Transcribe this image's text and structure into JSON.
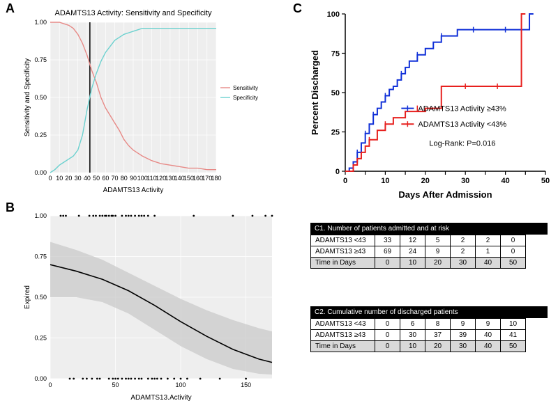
{
  "colors": {
    "sensitivity": "#e78a87",
    "specificity": "#6bd1cf",
    "km_ge43": "#1030d8",
    "km_lt43": "#e7201e",
    "ci_fill": "#c8c8c8",
    "ci_line": "#000000",
    "bg": "#ffffff",
    "panel_border": "#cccccc",
    "vline": "#000000"
  },
  "panelA": {
    "label": "A",
    "title": "ADAMTS13 Activity: Sensitivity and Specificity",
    "ylabel": "Sensitivity and Specificity",
    "xlabel": "ADAMTS13 Activity",
    "xlim": [
      0,
      180
    ],
    "xtick_step": 10,
    "ylim": [
      0,
      1
    ],
    "ytick_step": 0.25,
    "vline_x": 43,
    "series": {
      "sensitivity": [
        [
          0,
          1.0
        ],
        [
          5,
          1.0
        ],
        [
          10,
          1.0
        ],
        [
          15,
          0.99
        ],
        [
          20,
          0.98
        ],
        [
          25,
          0.96
        ],
        [
          30,
          0.92
        ],
        [
          35,
          0.86
        ],
        [
          40,
          0.78
        ],
        [
          45,
          0.68
        ],
        [
          50,
          0.6
        ],
        [
          55,
          0.5
        ],
        [
          60,
          0.43
        ],
        [
          65,
          0.38
        ],
        [
          70,
          0.33
        ],
        [
          75,
          0.28
        ],
        [
          80,
          0.22
        ],
        [
          85,
          0.18
        ],
        [
          90,
          0.15
        ],
        [
          95,
          0.13
        ],
        [
          100,
          0.11
        ],
        [
          110,
          0.08
        ],
        [
          120,
          0.06
        ],
        [
          130,
          0.05
        ],
        [
          140,
          0.04
        ],
        [
          150,
          0.03
        ],
        [
          160,
          0.03
        ],
        [
          170,
          0.02
        ],
        [
          180,
          0.02
        ]
      ],
      "specificity": [
        [
          0,
          0.0
        ],
        [
          5,
          0.02
        ],
        [
          10,
          0.05
        ],
        [
          15,
          0.07
        ],
        [
          20,
          0.09
        ],
        [
          25,
          0.11
        ],
        [
          30,
          0.15
        ],
        [
          35,
          0.25
        ],
        [
          40,
          0.42
        ],
        [
          45,
          0.56
        ],
        [
          50,
          0.66
        ],
        [
          55,
          0.74
        ],
        [
          60,
          0.8
        ],
        [
          65,
          0.84
        ],
        [
          70,
          0.88
        ],
        [
          75,
          0.9
        ],
        [
          80,
          0.92
        ],
        [
          85,
          0.93
        ],
        [
          90,
          0.94
        ],
        [
          95,
          0.95
        ],
        [
          100,
          0.96
        ],
        [
          110,
          0.96
        ],
        [
          120,
          0.96
        ],
        [
          130,
          0.96
        ],
        [
          140,
          0.96
        ],
        [
          150,
          0.96
        ],
        [
          160,
          0.96
        ],
        [
          170,
          0.96
        ],
        [
          180,
          0.96
        ]
      ]
    },
    "legend": {
      "sensitivity": "Sensitivity",
      "specificity": "Specificity"
    }
  },
  "panelB": {
    "label": "B",
    "ylabel": "Expired",
    "xlabel": "ADAMTS13.Activity",
    "xlim": [
      0,
      170
    ],
    "xtick_vals": [
      0,
      50,
      100,
      150
    ],
    "ylim": [
      0,
      1
    ],
    "ytick_step": 0.25,
    "curve": [
      [
        0,
        0.7
      ],
      [
        20,
        0.66
      ],
      [
        40,
        0.61
      ],
      [
        60,
        0.54
      ],
      [
        80,
        0.45
      ],
      [
        100,
        0.35
      ],
      [
        120,
        0.26
      ],
      [
        140,
        0.18
      ],
      [
        160,
        0.12
      ],
      [
        170,
        0.1
      ]
    ],
    "ci_upper": [
      [
        0,
        0.84
      ],
      [
        20,
        0.79
      ],
      [
        40,
        0.73
      ],
      [
        60,
        0.65
      ],
      [
        80,
        0.57
      ],
      [
        100,
        0.49
      ],
      [
        120,
        0.42
      ],
      [
        140,
        0.36
      ],
      [
        160,
        0.31
      ],
      [
        170,
        0.29
      ]
    ],
    "ci_lower": [
      [
        0,
        0.5
      ],
      [
        20,
        0.5
      ],
      [
        40,
        0.47
      ],
      [
        60,
        0.4
      ],
      [
        80,
        0.3
      ],
      [
        100,
        0.2
      ],
      [
        120,
        0.12
      ],
      [
        140,
        0.06
      ],
      [
        160,
        0.03
      ],
      [
        170,
        0.025
      ]
    ],
    "rug_top_x": [
      8,
      10,
      12,
      22,
      30,
      33,
      35,
      38,
      40,
      42,
      43,
      45,
      47,
      48,
      50,
      55,
      58,
      60,
      62,
      65,
      68,
      70,
      72,
      75,
      80,
      110,
      140,
      155,
      165,
      170
    ],
    "rug_bot_x": [
      15,
      18,
      25,
      28,
      32,
      36,
      38,
      45,
      48,
      50,
      52,
      55,
      58,
      60,
      62,
      65,
      68,
      70,
      75,
      78,
      80,
      82,
      85,
      90,
      95,
      100,
      105,
      115,
      130,
      150
    ]
  },
  "panelC": {
    "label": "C",
    "ylabel": "Percent Discharged",
    "xlabel": "Days After Admission",
    "xlim": [
      0,
      50
    ],
    "xtick_step": 5,
    "ylim": [
      0,
      100
    ],
    "ytick_step": 25,
    "legend": {
      "ge43": "ADAMTS13 Activity ≥43%",
      "lt43": "ADAMTS13 Activity <43%"
    },
    "logrank": "Log-Rank: P=0.016",
    "steps_ge43": [
      [
        0,
        0
      ],
      [
        1,
        2
      ],
      [
        2,
        6
      ],
      [
        3,
        12
      ],
      [
        4,
        18
      ],
      [
        5,
        24
      ],
      [
        6,
        30
      ],
      [
        7,
        36
      ],
      [
        8,
        40
      ],
      [
        9,
        44
      ],
      [
        10,
        48
      ],
      [
        11,
        52
      ],
      [
        12,
        54
      ],
      [
        13,
        58
      ],
      [
        14,
        62
      ],
      [
        15,
        66
      ],
      [
        16,
        70
      ],
      [
        18,
        74
      ],
      [
        20,
        78
      ],
      [
        22,
        82
      ],
      [
        24,
        86
      ],
      [
        28,
        90
      ],
      [
        46,
        90
      ],
      [
        46,
        100
      ],
      [
        47,
        100
      ]
    ],
    "steps_lt43": [
      [
        0,
        0
      ],
      [
        2,
        4
      ],
      [
        3,
        8
      ],
      [
        4,
        12
      ],
      [
        5,
        16
      ],
      [
        6,
        20
      ],
      [
        8,
        26
      ],
      [
        10,
        30
      ],
      [
        12,
        34
      ],
      [
        15,
        38
      ],
      [
        20,
        40
      ],
      [
        24,
        40
      ],
      [
        24,
        54
      ],
      [
        44,
        54
      ],
      [
        44,
        100
      ],
      [
        45,
        100
      ]
    ],
    "censor_ge43": [
      [
        3,
        12
      ],
      [
        5,
        24
      ],
      [
        7,
        36
      ],
      [
        10,
        48
      ],
      [
        14,
        62
      ],
      [
        18,
        74
      ],
      [
        24,
        86
      ],
      [
        32,
        90
      ],
      [
        40,
        90
      ]
    ],
    "censor_lt43": [
      [
        6,
        20
      ],
      [
        10,
        30
      ],
      [
        18,
        40
      ],
      [
        30,
        54
      ],
      [
        38,
        54
      ]
    ]
  },
  "tableC1": {
    "title": "C1. Number of patients admitted and at risk",
    "rows": [
      {
        "label": "ADAMTS13 <43",
        "vals": [
          33,
          12,
          5,
          2,
          2,
          0
        ]
      },
      {
        "label": "ADAMTS13 ≥43",
        "vals": [
          69,
          24,
          9,
          2,
          1,
          0
        ]
      }
    ],
    "time_label": "Time in Days",
    "time_vals": [
      0,
      10,
      20,
      30,
      40,
      50
    ]
  },
  "tableC2": {
    "title": "C2. Cumulative number of discharged patients",
    "rows": [
      {
        "label": "ADAMTS13 <43",
        "vals": [
          0,
          6,
          8,
          9,
          9,
          10
        ]
      },
      {
        "label": "ADAMTS13 ≥43",
        "vals": [
          0,
          30,
          37,
          39,
          40,
          41
        ]
      }
    ],
    "time_label": "Time in Days",
    "time_vals": [
      0,
      10,
      20,
      30,
      40,
      50
    ]
  }
}
